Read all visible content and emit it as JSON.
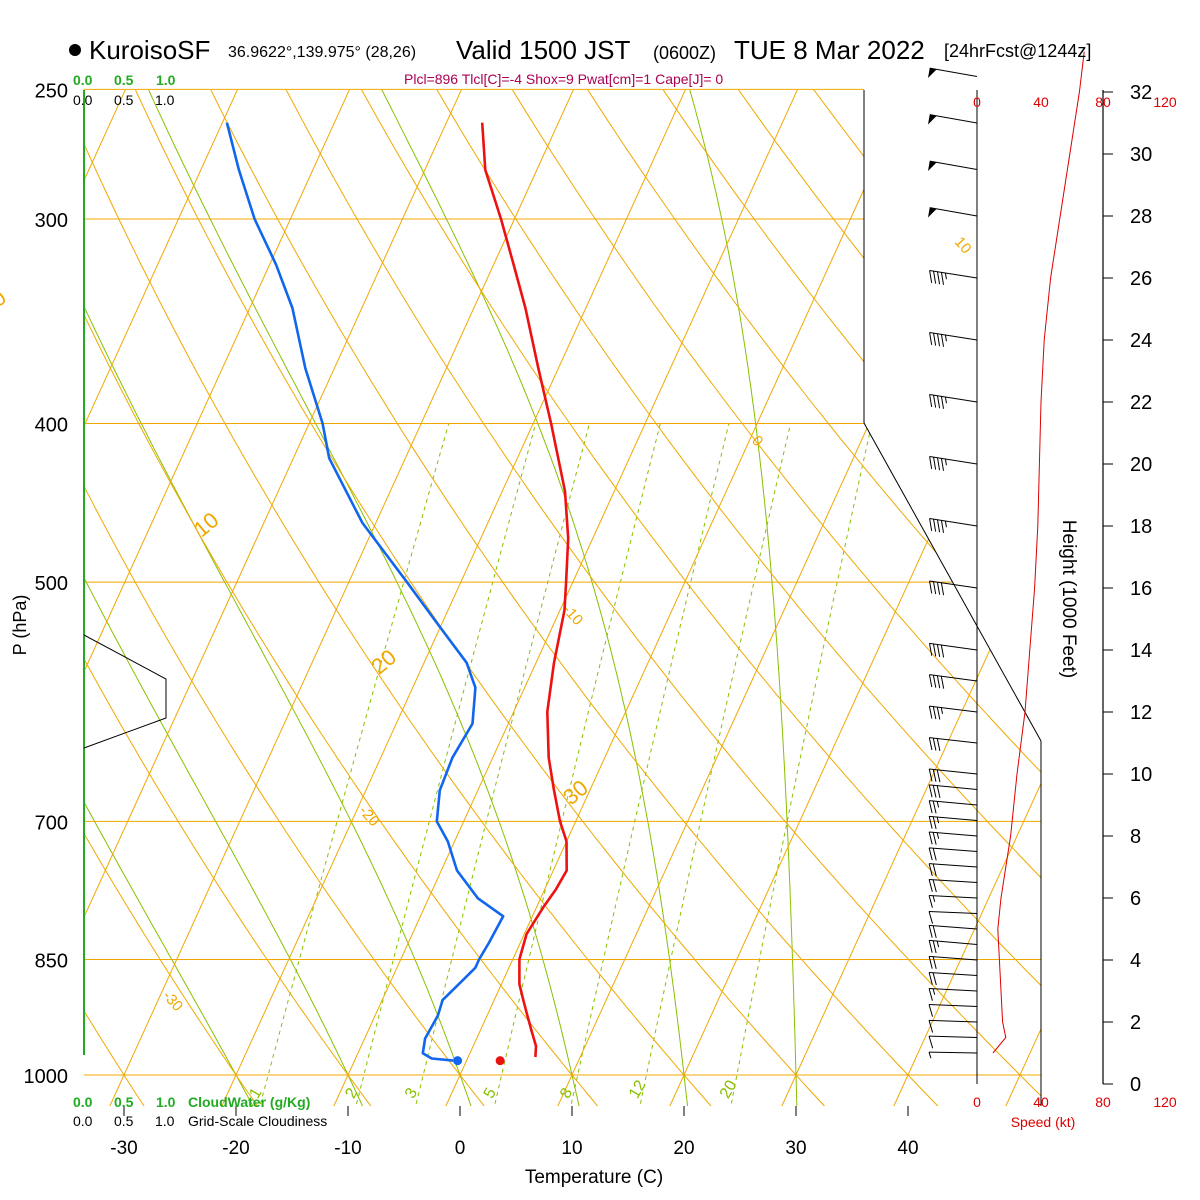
{
  "header": {
    "station": "KuroisoSF",
    "coords": "36.9622°,139.975° (28,26)",
    "valid_main": "Valid 1500 JST",
    "valid_z": "(0600Z)",
    "valid_date": "TUE 8 Mar 2022",
    "fcst": "[24hrFcst@1244z]",
    "indices": "Plcl=896 Tlcl[C]=-4 Shox=9 Pwat[cm]=1 Cape[J]= 0"
  },
  "scales": {
    "cloudwater": [
      "0.0",
      "0.5",
      "1.0"
    ],
    "cloudiness": [
      "0.0",
      "0.5",
      "1.0"
    ],
    "cloudwater_label": "CloudWater (g/Kg)",
    "cloudiness_label": "Grid-Scale Cloudiness"
  },
  "speed_axis": {
    "ticks": [
      "0",
      "40",
      "80",
      "120"
    ],
    "label": "Speed (kt)"
  },
  "height_axis": {
    "label": "Height (1000 Feet)",
    "ticks": [
      "0",
      "2",
      "4",
      "6",
      "8",
      "10",
      "12",
      "14",
      "16",
      "18",
      "20",
      "22",
      "24",
      "26",
      "28",
      "30",
      "32"
    ]
  },
  "colors": {
    "temperature": "#ee1111",
    "dewpoint": "#1166ee",
    "isotherm": "#f0a800",
    "dry_adiabat": "#f0a800",
    "moist_adiabat": "#88c000",
    "mixing_ratio": "#88c000",
    "cloud": "#22aa22",
    "indices": "#aa0055"
  },
  "chart_data": {
    "type": "line",
    "title": "KuroisoSF Valid 1500 JST (0600Z) TUE 8 Mar 2022",
    "xlabel": "Temperature (C)",
    "ylabel": "P (hPa)",
    "y_scale": "log-pressure",
    "ylim": [
      1000,
      250
    ],
    "xlim": [
      -35,
      45
    ],
    "x_ticks": [
      "-30",
      "-20",
      "-10",
      "0",
      "10",
      "20",
      "30",
      "40"
    ],
    "pressure_ticks": [
      "250",
      "300",
      "400",
      "500",
      "700",
      "850",
      "1000"
    ],
    "isotherm_labels": [
      "10",
      "0",
      "-10",
      "-20",
      "-30"
    ],
    "dry_adiabat_labels": [
      "0",
      "10",
      "20",
      "30"
    ],
    "mixing_ratio_labels": [
      "1",
      "2",
      "3",
      "5",
      "8",
      "12",
      "20"
    ],
    "series": [
      {
        "name": "Temperature",
        "points": [
          [
            975,
            6.0
          ],
          [
            960,
            5.6
          ],
          [
            940,
            4.6
          ],
          [
            920,
            3.6
          ],
          [
            900,
            2.6
          ],
          [
            880,
            1.6
          ],
          [
            850,
            0.6
          ],
          [
            820,
            0.2
          ],
          [
            790,
            0.6
          ],
          [
            770,
            1.0
          ],
          [
            750,
            1.2
          ],
          [
            720,
            0.0
          ],
          [
            700,
            -1.4
          ],
          [
            670,
            -3.2
          ],
          [
            640,
            -5.0
          ],
          [
            600,
            -7.0
          ],
          [
            560,
            -8.4
          ],
          [
            520,
            -9.6
          ],
          [
            500,
            -10.6
          ],
          [
            470,
            -12.2
          ],
          [
            440,
            -14.4
          ],
          [
            400,
            -18.4
          ],
          [
            370,
            -21.8
          ],
          [
            340,
            -25.4
          ],
          [
            320,
            -28.2
          ],
          [
            300,
            -31.2
          ],
          [
            280,
            -34.6
          ],
          [
            262,
            -36.8
          ]
        ]
      },
      {
        "name": "Dewpoint",
        "points": [
          [
            980,
            -1.2
          ],
          [
            977,
            -3.2
          ],
          [
            970,
            -4.2
          ],
          [
            950,
            -4.6
          ],
          [
            920,
            -4.4
          ],
          [
            900,
            -4.6
          ],
          [
            880,
            -3.8
          ],
          [
            860,
            -3.0
          ],
          [
            850,
            -3.0
          ],
          [
            830,
            -2.8
          ],
          [
            800,
            -2.6
          ],
          [
            780,
            -5.6
          ],
          [
            750,
            -8.6
          ],
          [
            720,
            -10.6
          ],
          [
            700,
            -12.4
          ],
          [
            670,
            -13.4
          ],
          [
            640,
            -13.6
          ],
          [
            610,
            -13.2
          ],
          [
            580,
            -14.4
          ],
          [
            560,
            -16.2
          ],
          [
            530,
            -20.4
          ],
          [
            500,
            -24.8
          ],
          [
            460,
            -31.2
          ],
          [
            420,
            -36.8
          ],
          [
            400,
            -38.8
          ],
          [
            370,
            -42.6
          ],
          [
            340,
            -46.2
          ],
          [
            320,
            -49.4
          ],
          [
            300,
            -53.2
          ],
          [
            280,
            -56.6
          ],
          [
            262,
            -59.6
          ]
        ]
      }
    ],
    "surface_markers": [
      {
        "name": "Temperature",
        "p": 980,
        "t": 3.0
      },
      {
        "name": "Dewpoint",
        "p": 980,
        "t": -0.8
      }
    ],
    "winds": [
      {
        "h": 1,
        "s": 5
      },
      {
        "h": 1.5,
        "s": 8
      },
      {
        "h": 2,
        "s": 10
      },
      {
        "h": 2.5,
        "s": 12
      },
      {
        "h": 3,
        "s": 15
      },
      {
        "h": 3.5,
        "s": 18
      },
      {
        "h": 4,
        "s": 22
      },
      {
        "h": 4.5,
        "s": 25
      },
      {
        "h": 5,
        "s": 22
      },
      {
        "h": 5.5,
        "s": 12
      },
      {
        "h": 6,
        "s": 15
      },
      {
        "h": 6.5,
        "s": 18
      },
      {
        "h": 7,
        "s": 20
      },
      {
        "h": 7.5,
        "s": 22
      },
      {
        "h": 8,
        "s": 24
      },
      {
        "h": 8.5,
        "s": 25
      },
      {
        "h": 9,
        "s": 26
      },
      {
        "h": 9.5,
        "s": 28
      },
      {
        "h": 10,
        "s": 30
      },
      {
        "h": 11,
        "s": 32
      },
      {
        "h": 12,
        "s": 35
      },
      {
        "h": 13,
        "s": 38
      },
      {
        "h": 14,
        "s": 40
      },
      {
        "h": 16,
        "s": 42
      },
      {
        "h": 18,
        "s": 45
      },
      {
        "h": 20,
        "s": 45
      },
      {
        "h": 22,
        "s": 45
      },
      {
        "h": 24,
        "s": 45
      },
      {
        "h": 26,
        "s": 45
      },
      {
        "h": 28,
        "s": 50
      },
      {
        "h": 29.5,
        "s": 50
      },
      {
        "h": 31,
        "s": 50
      },
      {
        "h": 32.5,
        "s": 50
      }
    ],
    "wind_speed_profile": [
      [
        1,
        10
      ],
      [
        1.5,
        18
      ],
      [
        2,
        16
      ],
      [
        3,
        15
      ],
      [
        4,
        14
      ],
      [
        5,
        13
      ],
      [
        6,
        15
      ],
      [
        7,
        18
      ],
      [
        8,
        21
      ],
      [
        10,
        25
      ],
      [
        12,
        30
      ],
      [
        14,
        33
      ],
      [
        16,
        36
      ],
      [
        18,
        38
      ],
      [
        20,
        39
      ],
      [
        22,
        40
      ],
      [
        24,
        42
      ],
      [
        26,
        46
      ],
      [
        28,
        52
      ],
      [
        30,
        58
      ],
      [
        32,
        64
      ],
      [
        33.3,
        67
      ]
    ]
  }
}
